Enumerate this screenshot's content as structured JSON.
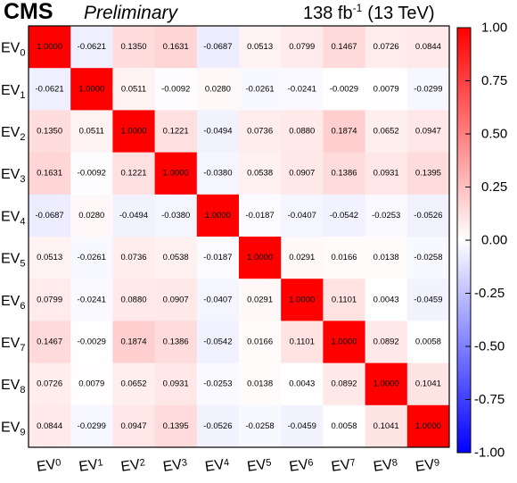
{
  "header": {
    "experiment": "CMS",
    "status": "Preliminary",
    "lumi": "138 fb",
    "lumi_exp": "-1",
    "energy": "(13 TeV)"
  },
  "chart_data": {
    "type": "heatmap",
    "labels": [
      {
        "base": "EV",
        "sub": "0"
      },
      {
        "base": "EV",
        "sub": "1"
      },
      {
        "base": "EV",
        "sub": "2"
      },
      {
        "base": "EV",
        "sub": "3"
      },
      {
        "base": "EV",
        "sub": "4"
      },
      {
        "base": "EV",
        "sub": "5"
      },
      {
        "base": "EV",
        "sub": "6"
      },
      {
        "base": "EV",
        "sub": "7"
      },
      {
        "base": "EV",
        "sub": "8"
      },
      {
        "base": "EV",
        "sub": "9"
      }
    ],
    "matrix": [
      [
        "1.0000",
        "-0.0621",
        "0.1350",
        "0.1631",
        "-0.0687",
        "0.0513",
        "0.0799",
        "0.1467",
        "0.0726",
        "0.0844"
      ],
      [
        "-0.0621",
        "1.0000",
        "0.0511",
        "-0.0092",
        "0.0280",
        "-0.0261",
        "-0.0241",
        "-0.0029",
        "0.0079",
        "-0.0299"
      ],
      [
        "0.1350",
        "0.0511",
        "1.0000",
        "0.1221",
        "-0.0494",
        "0.0736",
        "0.0880",
        "0.1874",
        "0.0652",
        "0.0947"
      ],
      [
        "0.1631",
        "-0.0092",
        "0.1221",
        "1.0000",
        "-0.0380",
        "0.0538",
        "0.0907",
        "0.1386",
        "0.0931",
        "0.1395"
      ],
      [
        "-0.0687",
        "0.0280",
        "-0.0494",
        "-0.0380",
        "1.0000",
        "-0.0187",
        "-0.0407",
        "-0.0542",
        "-0.0253",
        "-0.0526"
      ],
      [
        "0.0513",
        "-0.0261",
        "0.0736",
        "0.0538",
        "-0.0187",
        "1.0000",
        "0.0291",
        "0.0166",
        "0.0138",
        "-0.0258"
      ],
      [
        "0.0799",
        "-0.0241",
        "0.0880",
        "0.0907",
        "-0.0407",
        "0.0291",
        "1.0000",
        "0.1101",
        "0.0043",
        "-0.0459"
      ],
      [
        "0.1467",
        "-0.0029",
        "0.1874",
        "0.1386",
        "-0.0542",
        "0.0166",
        "0.1101",
        "1.0000",
        "0.0892",
        "0.0058"
      ],
      [
        "0.0726",
        "0.0079",
        "0.0652",
        "0.0931",
        "-0.0253",
        "0.0138",
        "0.0043",
        "0.0892",
        "1.0000",
        "0.1041"
      ],
      [
        "0.0844",
        "-0.0299",
        "0.0947",
        "0.1395",
        "-0.0526",
        "-0.0258",
        "-0.0459",
        "0.0058",
        "0.1041",
        "1.0000"
      ]
    ],
    "zlim": [
      -1,
      1
    ],
    "colorbar_ticks": [
      "1.00",
      "0.75",
      "0.50",
      "0.25",
      "0.00",
      "-0.25",
      "-0.50",
      "-0.75",
      "-1.00"
    ],
    "colorscale": {
      "min_color": "#0000ff",
      "mid_color": "#ffffff",
      "max_color": "#ff0000"
    }
  }
}
